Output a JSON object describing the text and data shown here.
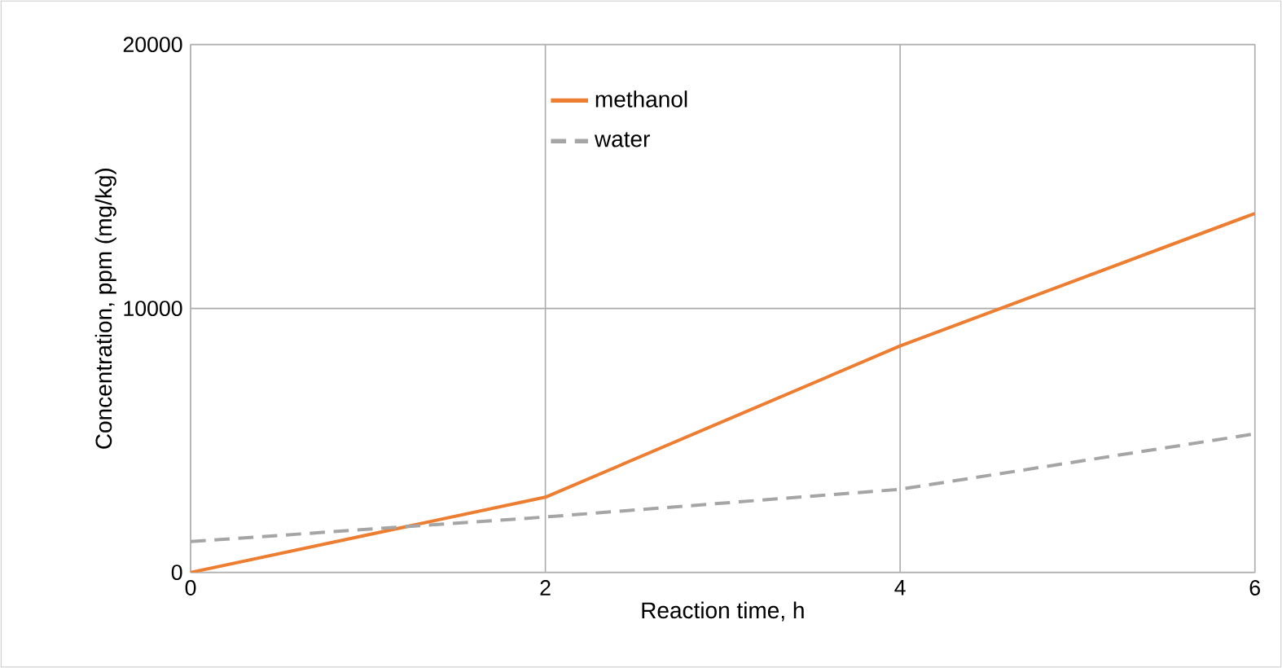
{
  "chart_data": {
    "type": "line",
    "xlabel": "Reaction time, h",
    "ylabel": "Concentration, ppm (mg/kg)",
    "xlim": [
      0,
      6
    ],
    "xticks": [
      0,
      2,
      4,
      6
    ],
    "ylim": [
      0,
      20000
    ],
    "yticks": [
      0,
      10000,
      20000
    ],
    "grid": true,
    "legend": "top",
    "x": [
      0,
      2,
      4,
      6
    ],
    "series": [
      {
        "name": "methanol",
        "color": "#ed7d31",
        "line_style": "solid",
        "values": [
          0,
          2850,
          8580,
          13600
        ]
      },
      {
        "name": "water",
        "color": "#a5a5a5",
        "line_style": "dashed",
        "values": [
          1170,
          2100,
          3150,
          5250
        ]
      }
    ]
  }
}
